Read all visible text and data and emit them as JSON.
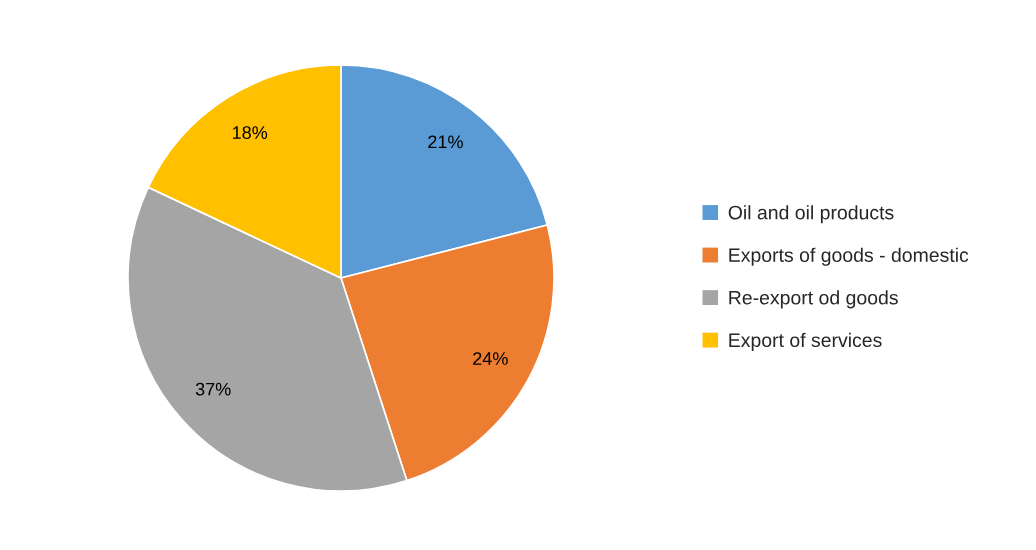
{
  "chart_data": {
    "type": "pie",
    "categories": [
      "Oil and oil products",
      "Exports of goods - domestic",
      "Re-export od goods",
      "Export of services"
    ],
    "values": [
      21,
      24,
      37,
      18
    ],
    "colors": [
      "#5b9bd5",
      "#ed7d31",
      "#a5a5a5",
      "#ffc000"
    ],
    "value_labels": [
      "21%",
      "24%",
      "37%",
      "18%"
    ],
    "legend": "right"
  }
}
